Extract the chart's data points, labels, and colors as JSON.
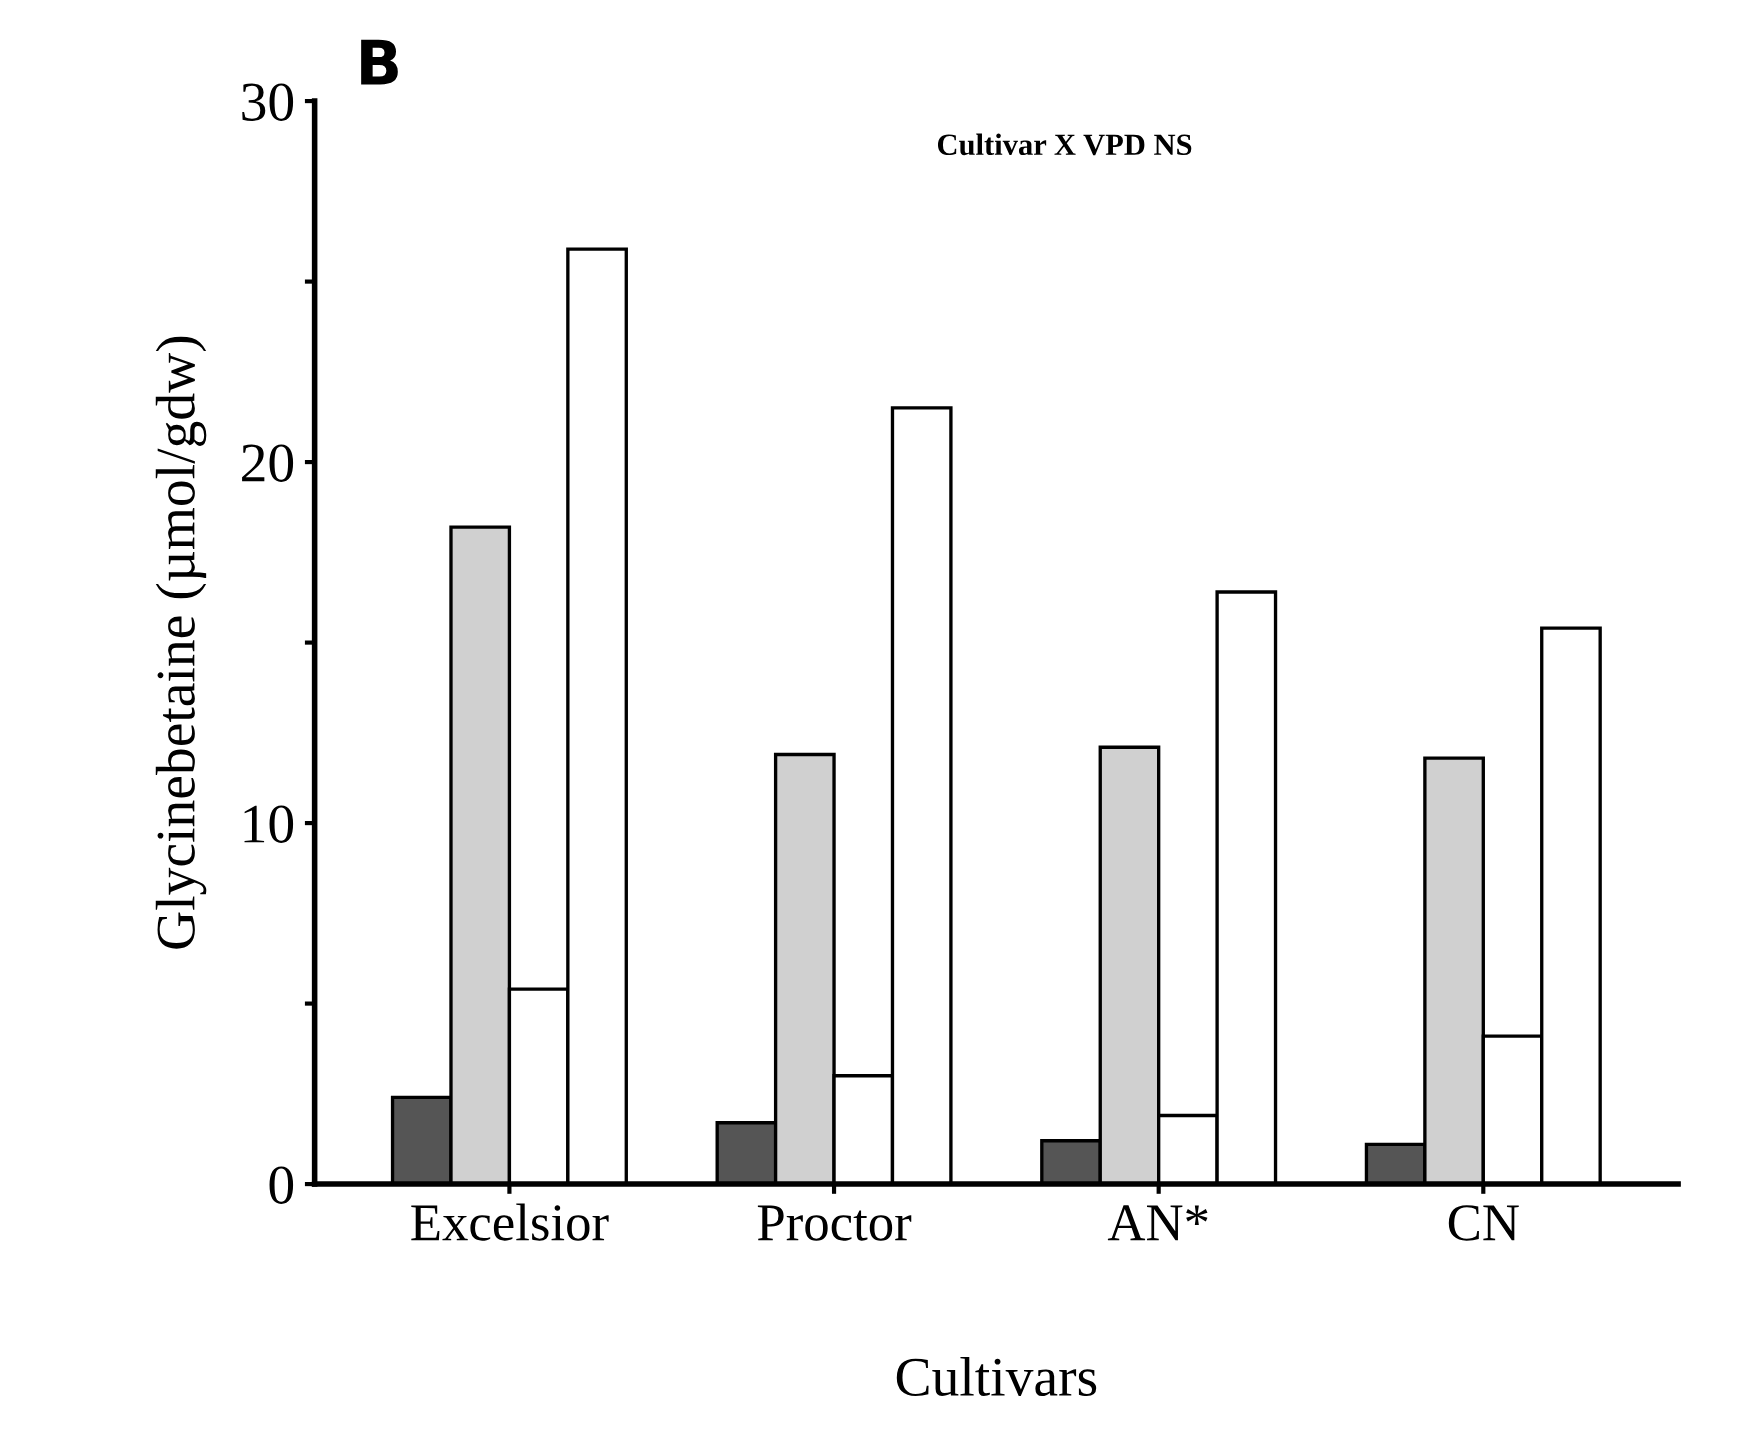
{
  "chart_data": {
    "type": "bar",
    "title": "B",
    "annotations": [
      "Cultivar X VPD NS"
    ],
    "xlabel": "Cultivars",
    "ylabel": "Glycinebetaine (µmol/gdw)",
    "categories": [
      "Excelsior",
      "Proctor",
      "AN*",
      "CN"
    ],
    "series": [
      {
        "color": "#555555",
        "values": [
          2.4,
          1.7,
          1.2,
          1.1
        ]
      },
      {
        "color": "#d0d0d0",
        "values": [
          18.2,
          11.9,
          12.1,
          11.8
        ]
      },
      {
        "color": "#ffffff",
        "values": [
          5.4,
          3.0,
          1.9,
          4.1
        ]
      },
      {
        "color": "#ffffff",
        "values": [
          25.9,
          21.5,
          16.4,
          15.4
        ]
      }
    ],
    "ylim": [
      0,
      30
    ],
    "yticks": [
      0,
      {
        "value": 5,
        "label": null
      },
      10,
      {
        "value": 15,
        "label": null
      },
      20,
      {
        "value": 25,
        "label": null
      },
      30
    ],
    "grid": false,
    "legend": false
  }
}
